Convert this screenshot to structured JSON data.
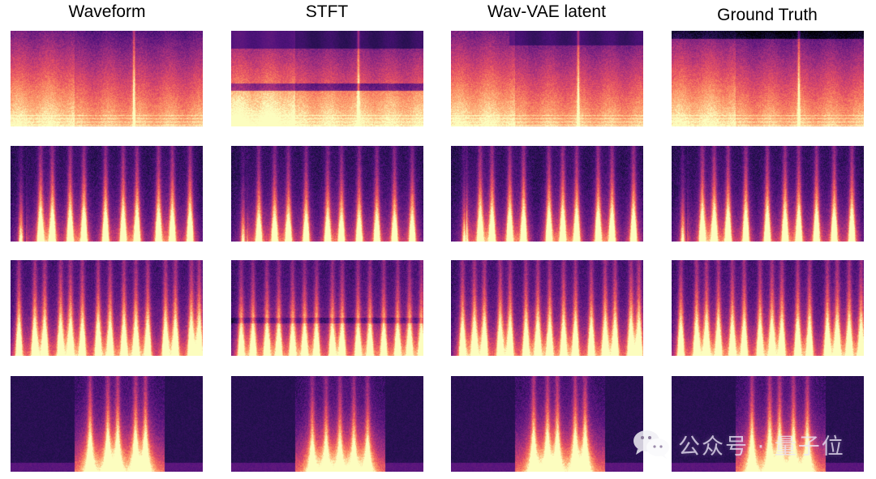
{
  "columns": [
    {
      "title": "Waveform"
    },
    {
      "title": "STFT"
    },
    {
      "title": "Wav-VAE latent"
    },
    {
      "title": "Ground Truth"
    }
  ],
  "panels": {
    "colormap": "magma",
    "rows": [
      {
        "kind": "music",
        "band_gap_column": 1,
        "streak_at": [
          0.64,
          0.66,
          0.66,
          0.66
        ]
      },
      {
        "kind": "speech",
        "streaks": [
          0.06,
          0.15,
          0.22,
          0.3,
          0.38,
          0.5,
          0.58,
          0.66,
          0.76,
          0.84,
          0.94
        ]
      },
      {
        "kind": "dense-speech",
        "streaks": [
          0.05,
          0.12,
          0.18,
          0.25,
          0.31,
          0.38,
          0.45,
          0.52,
          0.58,
          0.65,
          0.72,
          0.8,
          0.86,
          0.93,
          0.98
        ]
      },
      {
        "kind": "sparse-speech",
        "onset": 0.33,
        "offset": 0.8,
        "streaks": [
          0.42,
          0.5,
          0.56,
          0.64,
          0.7
        ]
      }
    ]
  },
  "watermark": {
    "icon": "wechat-icon",
    "text": "公众号 · 量子位"
  }
}
